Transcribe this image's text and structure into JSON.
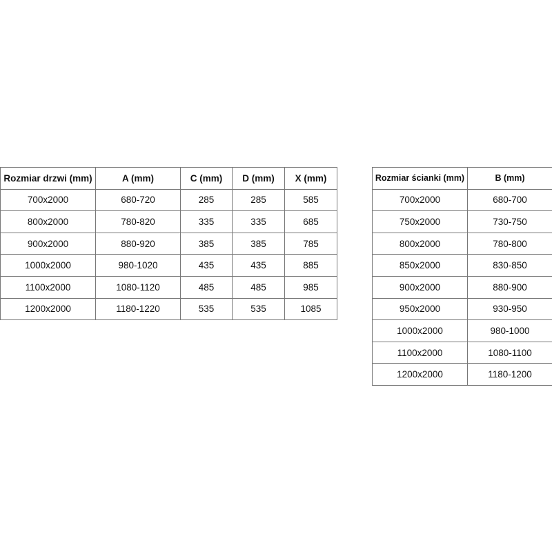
{
  "door_table": {
    "headers": [
      "Rozmiar drzwi (mm)",
      "A (mm)",
      "C (mm)",
      "D (mm)",
      "X (mm)"
    ],
    "rows": [
      [
        "700x2000",
        "680-720",
        "285",
        "285",
        "585"
      ],
      [
        "800x2000",
        "780-820",
        "335",
        "335",
        "685"
      ],
      [
        "900x2000",
        "880-920",
        "385",
        "385",
        "785"
      ],
      [
        "1000x2000",
        "980-1020",
        "435",
        "435",
        "885"
      ],
      [
        "1100x2000",
        "1080-1120",
        "485",
        "485",
        "985"
      ],
      [
        "1200x2000",
        "1180-1220",
        "535",
        "535",
        "1085"
      ]
    ]
  },
  "wall_table": {
    "headers": [
      "Rozmiar ścianki (mm)",
      "B (mm)"
    ],
    "rows": [
      [
        "700x2000",
        "680-700"
      ],
      [
        "750x2000",
        "730-750"
      ],
      [
        "800x2000",
        "780-800"
      ],
      [
        "850x2000",
        "830-850"
      ],
      [
        "900x2000",
        "880-900"
      ],
      [
        "950x2000",
        "930-950"
      ],
      [
        "1000x2000",
        "980-1000"
      ],
      [
        "1100x2000",
        "1080-1100"
      ],
      [
        "1200x2000",
        "1180-1200"
      ]
    ]
  }
}
